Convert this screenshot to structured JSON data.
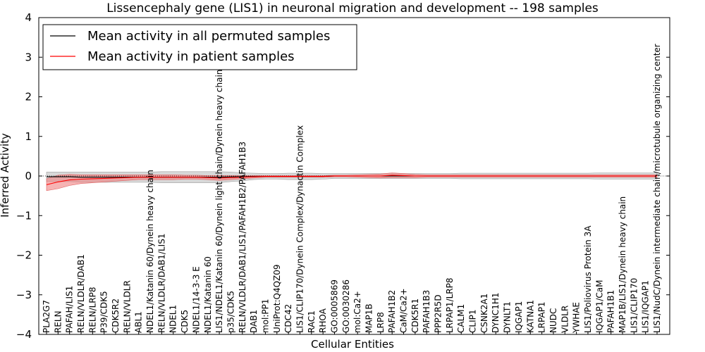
{
  "chart_data": {
    "type": "line",
    "title": "Lissencephaly gene (LIS1) in neuronal migration and development -- 198 samples",
    "xlabel": "Cellular Entities",
    "ylabel": "Inferred Activity",
    "ylim": [
      -4,
      4
    ],
    "yticks": [
      -4,
      -3,
      -2,
      -1,
      0,
      1,
      2,
      3,
      4
    ],
    "legend_position": "top-left",
    "categories": [
      "PLA2G7",
      "RELN",
      "PAFAH/LIS1",
      "RELN/VLDLR/DAB1",
      "RELN/LRP8",
      "P39/CDK5",
      "CDK5R2",
      "RELN/VLDLR",
      "ABL1",
      "NDEL1/Katanin 60/Dynein heavy chain",
      "RELN/VLDLR/DAB1/LIS1",
      "NDEL1",
      "CDK5",
      "NDEL1/14-3-3 E",
      "NDEL1/Katanin 60",
      "LIS1/NDEL1/Katanin 60/Dynein light chain/Dynein heavy chain",
      "p35/CDK5",
      "RELN/VLDLR/DAB1/LIS1/PAFAH1B2/PAFAH1B3",
      "DAB1",
      "mol:PP1",
      "UniProt:Q4QZ09",
      "CDC42",
      "LIS1/CLIP170/Dynein Complex/Dynactin Complex",
      "RAC1",
      "RHOA",
      "GO:0005869",
      "GO:0030286",
      "mol:Ca2+",
      "MAP1B",
      "LRP8",
      "PAFAH1B2",
      "CaM/Ca2+",
      "CDK5R1",
      "PAFAH1B3",
      "PPP2R5D",
      "LRPAP1/LRP8",
      "CALM1",
      "CLIP1",
      "CSNK2A1",
      "DYNC1H1",
      "DYNLT1",
      "IQGAP1",
      "KATNA1",
      "LRPAP1",
      "NUDC",
      "VLDLR",
      "YWHAE",
      "LIS1/Poliovirus Protein 3A",
      "IQGAP1/CaM",
      "PAFAH1B1",
      "MAP1B/LIS1/Dynein heavy chain",
      "LIS1/CLIP170",
      "LIS1/IQGAP1",
      "LIS1/NudC/Dynein intermediate chain/microtubule organizing center"
    ],
    "series": [
      {
        "name": "Mean activity in all permuted samples",
        "color": "#000000",
        "band_color": "#c8c8c8",
        "values": [
          -0.02,
          -0.02,
          -0.02,
          -0.03,
          -0.03,
          -0.03,
          -0.03,
          -0.03,
          -0.03,
          -0.03,
          -0.03,
          -0.03,
          -0.03,
          -0.03,
          -0.03,
          -0.03,
          -0.02,
          -0.02,
          -0.01,
          -0.01,
          -0.01,
          -0.01,
          -0.01,
          -0.01,
          -0.01,
          0,
          0,
          0,
          0,
          0,
          0,
          0,
          0,
          0,
          0,
          0,
          0,
          0,
          0,
          0,
          0,
          0,
          0,
          0,
          0,
          0,
          0,
          0,
          0,
          0,
          0,
          0,
          0,
          0
        ],
        "band": [
          0.12,
          0.12,
          0.12,
          0.13,
          0.13,
          0.13,
          0.13,
          0.13,
          0.13,
          0.13,
          0.14,
          0.14,
          0.14,
          0.14,
          0.14,
          0.14,
          0.12,
          0.1,
          0.08,
          0.07,
          0.07,
          0.08,
          0.08,
          0.08,
          0.07,
          0.06,
          0.06,
          0.06,
          0.06,
          0.06,
          0.06,
          0.06,
          0.06,
          0.06,
          0.06,
          0.06,
          0.07,
          0.07,
          0.07,
          0.07,
          0.07,
          0.07,
          0.07,
          0.07,
          0.07,
          0.07,
          0.07,
          0.07,
          0.08,
          0.08,
          0.08,
          0.08,
          0.08,
          0.08
        ]
      },
      {
        "name": "Mean activity in patient samples",
        "color": "#ff0000",
        "band_color": "#f08080",
        "values": [
          -0.22,
          -0.15,
          -0.1,
          -0.08,
          -0.07,
          -0.06,
          -0.05,
          -0.04,
          -0.03,
          -0.03,
          -0.03,
          -0.03,
          -0.03,
          -0.03,
          -0.04,
          -0.05,
          -0.04,
          -0.03,
          -0.02,
          -0.01,
          -0.01,
          -0.01,
          -0.01,
          -0.01,
          -0.01,
          0,
          0,
          0,
          0,
          0,
          0.02,
          0.01,
          0,
          0,
          0,
          0,
          0,
          0,
          0,
          0,
          0,
          0,
          0,
          0,
          0,
          0,
          0,
          0,
          0,
          0,
          0,
          0,
          0,
          0
        ],
        "band": [
          0.15,
          0.17,
          0.14,
          0.11,
          0.1,
          0.09,
          0.08,
          0.07,
          0.06,
          0.06,
          0.06,
          0.06,
          0.05,
          0.05,
          0.05,
          0.06,
          0.05,
          0.04,
          0.03,
          0.02,
          0.02,
          0.02,
          0.02,
          0.02,
          0.02,
          0.02,
          0.02,
          0.03,
          0.04,
          0.05,
          0.06,
          0.05,
          0.04,
          0.03,
          0.03,
          0.03,
          0.03,
          0.03,
          0.03,
          0.03,
          0.03,
          0.03,
          0.03,
          0.03,
          0.03,
          0.03,
          0.03,
          0.03,
          0.03,
          0.03,
          0.03,
          0.03,
          0.03,
          0.03
        ]
      }
    ]
  }
}
